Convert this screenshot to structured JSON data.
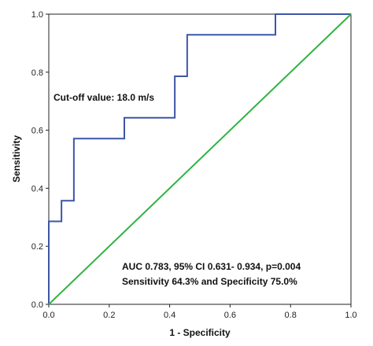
{
  "chart_data": {
    "type": "line",
    "title": "",
    "xlabel": "1 - Specificity",
    "ylabel": "Sensitivity",
    "xlim": [
      0,
      1
    ],
    "ylim": [
      0,
      1
    ],
    "x_ticks": [
      "0.0",
      "0.2",
      "0.4",
      "0.6",
      "0.8",
      "1.0"
    ],
    "y_ticks": [
      "0.0",
      "0.2",
      "0.4",
      "0.6",
      "0.8",
      "1.0"
    ],
    "grid": false,
    "legend": "none",
    "series": [
      {
        "color": "#3d56a6",
        "x": [
          0,
          0,
          0.042,
          0.042,
          0.083,
          0.083,
          0.25,
          0.25,
          0.417,
          0.417,
          0.458,
          0.458,
          0.75,
          0.75,
          1.0
        ],
        "y": [
          0,
          0.286,
          0.286,
          0.357,
          0.357,
          0.571,
          0.571,
          0.643,
          0.643,
          0.786,
          0.786,
          0.929,
          0.929,
          1.0,
          1.0
        ]
      },
      {
        "color": "#2fb342",
        "x": [
          0,
          1
        ],
        "y": [
          0,
          1
        ]
      }
    ],
    "annotations": {
      "cutoff": "Cut-off value: 18.0 m/s",
      "auc": "AUC 0.783, 95% CI 0.631- 0.934, p=0.004",
      "sens_spec": "Sensitivity 64.3% and Specificity 75.0%"
    }
  }
}
